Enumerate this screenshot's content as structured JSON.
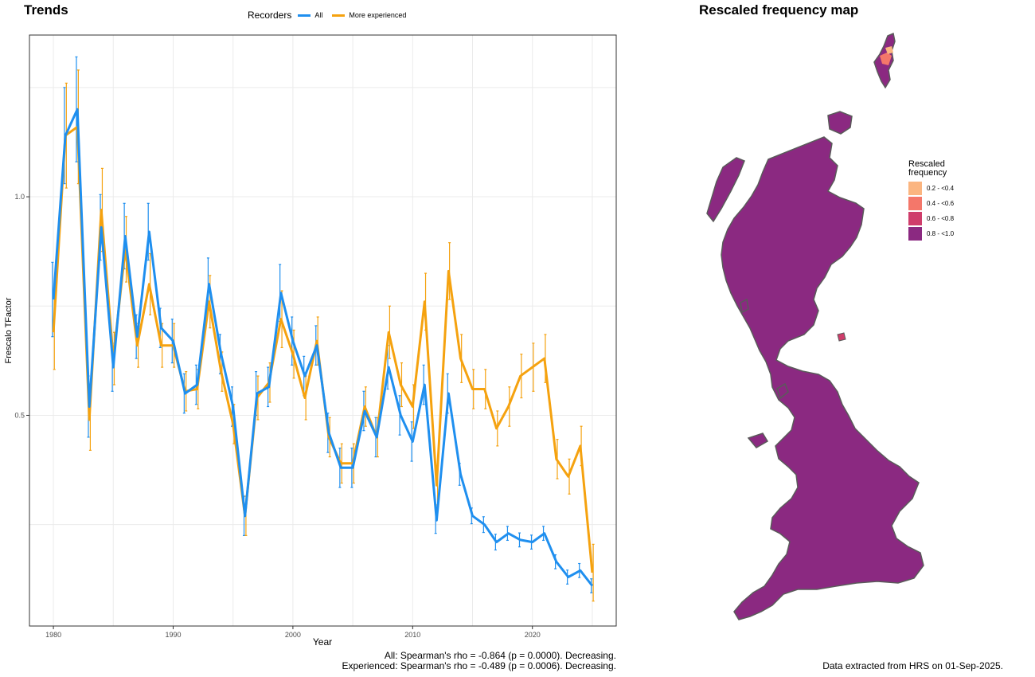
{
  "panels": {
    "trends_title": "Trends",
    "map_title": "Rescaled frequency map"
  },
  "legend": {
    "title": "Recorders",
    "items": [
      {
        "label": "All",
        "color": "#1f8fef"
      },
      {
        "label": "More experienced",
        "color": "#f5a20f"
      }
    ]
  },
  "chart_data": {
    "type": "line",
    "xlabel": "Year",
    "ylabel": "Frescalo TFactor",
    "xlim": [
      1978,
      2027
    ],
    "ylim": [
      0.018,
      1.37
    ],
    "xticks": [
      1980,
      1990,
      2000,
      2010,
      2020
    ],
    "yticks": [
      0.5,
      1.0
    ],
    "ytick_labels": [
      "0.5",
      "1.0"
    ],
    "grid": true,
    "series": [
      {
        "name": "All",
        "color": "#1f8fef",
        "x": [
          1980,
          1981,
          1982,
          1983,
          1984,
          1985,
          1986,
          1987,
          1988,
          1989,
          1990,
          1991,
          1992,
          1993,
          1994,
          1995,
          1996,
          1997,
          1998,
          1999,
          2000,
          2001,
          2002,
          2003,
          2004,
          2005,
          2006,
          2007,
          2008,
          2009,
          2010,
          2011,
          2012,
          2013,
          2014,
          2015,
          2016,
          2017,
          2018,
          2019,
          2020,
          2021,
          2022,
          2023,
          2024,
          2025
        ],
        "y": [
          0.765,
          1.14,
          1.2,
          0.52,
          0.93,
          0.61,
          0.91,
          0.68,
          0.92,
          0.7,
          0.67,
          0.55,
          0.57,
          0.8,
          0.64,
          0.52,
          0.27,
          0.55,
          0.565,
          0.78,
          0.67,
          0.59,
          0.66,
          0.46,
          0.38,
          0.38,
          0.51,
          0.45,
          0.61,
          0.5,
          0.44,
          0.57,
          0.26,
          0.55,
          0.365,
          0.27,
          0.25,
          0.21,
          0.23,
          0.215,
          0.21,
          0.23,
          0.165,
          0.13,
          0.145,
          0.11
        ],
        "err": [
          0.085,
          0.11,
          0.12,
          0.07,
          0.075,
          0.055,
          0.075,
          0.05,
          0.065,
          0.045,
          0.05,
          0.045,
          0.045,
          0.06,
          0.045,
          0.045,
          0.045,
          0.05,
          0.045,
          0.065,
          0.055,
          0.045,
          0.045,
          0.045,
          0.045,
          0.045,
          0.045,
          0.045,
          0.05,
          0.045,
          0.045,
          0.045,
          0.03,
          0.045,
          0.025,
          0.018,
          0.018,
          0.018,
          0.016,
          0.016,
          0.016,
          0.016,
          0.016,
          0.016,
          0.016,
          0.016
        ]
      },
      {
        "name": "More experienced",
        "color": "#f5a20f",
        "x": [
          1980,
          1981,
          1982,
          1983,
          1984,
          1985,
          1986,
          1987,
          1988,
          1989,
          1990,
          1991,
          1992,
          1993,
          1994,
          1995,
          1996,
          1997,
          1998,
          1999,
          2000,
          2001,
          2002,
          2003,
          2004,
          2005,
          2006,
          2007,
          2008,
          2009,
          2010,
          2011,
          2012,
          2013,
          2014,
          2015,
          2016,
          2017,
          2018,
          2019,
          2020,
          2021,
          2022,
          2023,
          2024,
          2025
        ],
        "y": [
          0.69,
          1.14,
          1.16,
          0.49,
          0.97,
          0.63,
          0.88,
          0.66,
          0.8,
          0.66,
          0.66,
          0.555,
          0.56,
          0.76,
          0.6,
          0.48,
          0.27,
          0.54,
          0.575,
          0.72,
          0.64,
          0.54,
          0.67,
          0.45,
          0.39,
          0.39,
          0.52,
          0.45,
          0.69,
          0.57,
          0.52,
          0.76,
          0.34,
          0.83,
          0.63,
          0.56,
          0.56,
          0.47,
          0.52,
          0.59,
          0.61,
          0.63,
          0.4,
          0.36,
          0.43,
          0.14
        ],
        "err": [
          0.085,
          0.12,
          0.13,
          0.07,
          0.095,
          0.06,
          0.075,
          0.05,
          0.07,
          0.05,
          0.05,
          0.045,
          0.045,
          0.06,
          0.045,
          0.045,
          0.045,
          0.05,
          0.045,
          0.065,
          0.055,
          0.05,
          0.055,
          0.045,
          0.045,
          0.045,
          0.045,
          0.045,
          0.06,
          0.05,
          0.05,
          0.065,
          0.045,
          0.065,
          0.055,
          0.045,
          0.045,
          0.04,
          0.045,
          0.05,
          0.055,
          0.055,
          0.045,
          0.04,
          0.045,
          0.065
        ]
      }
    ]
  },
  "footer": {
    "stats_line1": "All: Spearman's rho = -0.864 (p = 0.0000). Decreasing.",
    "stats_line2": "Experienced: Spearman's rho = -0.489 (p = 0.0006). Decreasing.",
    "source": "Data extracted from HRS on 01-Sep-2025."
  },
  "map_legend": {
    "title_line1": "Rescaled",
    "title_line2": "frequency",
    "items": [
      {
        "label": "0.2 - <0.4",
        "color": "#fbb580"
      },
      {
        "label": "0.4 - <0.6",
        "color": "#f4776a"
      },
      {
        "label": "0.6 - <0.8",
        "color": "#cf3d6b"
      },
      {
        "label": "0.8 - <1.0",
        "color": "#8b2981"
      }
    ]
  },
  "map_colors": {
    "land_fill": "#8b2981",
    "outline": "#5a5a5a"
  }
}
